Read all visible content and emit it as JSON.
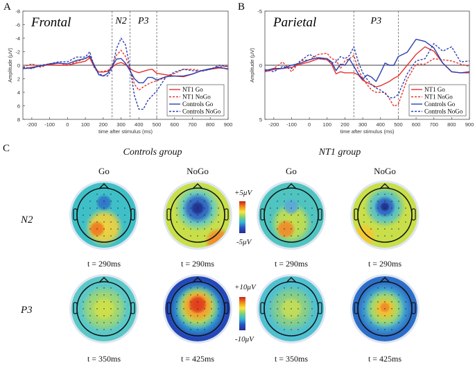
{
  "panels": [
    {
      "letter": "A",
      "region": "Frontal",
      "windows": [
        {
          "label": "N2",
          "from": 250,
          "to": 350
        },
        {
          "label": "P3",
          "from": 350,
          "to": 500
        }
      ],
      "markers_ms": [
        250,
        350,
        500
      ]
    },
    {
      "letter": "B",
      "region": "Parietal",
      "windows": [
        {
          "label": "P3",
          "from": 250,
          "to": 500
        }
      ],
      "markers_ms": [
        250,
        500
      ]
    }
  ],
  "chart_data": [
    {
      "type": "line",
      "title": "Frontal",
      "xlabel": "time after stimulus (ms)",
      "ylabel": "Amplitude (μV)",
      "xlim": [
        -250,
        900
      ],
      "ylim": [
        -8,
        8
      ],
      "y_reversed": true,
      "xticks": [
        -200,
        -100,
        0,
        100,
        200,
        300,
        400,
        500,
        600,
        700,
        800,
        900
      ],
      "yticks": [
        -8,
        -6,
        -4,
        -2,
        0,
        2,
        4,
        6,
        8
      ],
      "legend": "bottom-right",
      "x": [
        -250,
        -200,
        -150,
        -100,
        -50,
        0,
        50,
        100,
        125,
        150,
        175,
        200,
        225,
        250,
        275,
        300,
        325,
        350,
        375,
        400,
        425,
        450,
        475,
        500,
        550,
        600,
        650,
        700,
        750,
        800,
        850,
        900
      ],
      "series": [
        {
          "name": "NT1 Go",
          "color": "#e8302a",
          "dash": false,
          "values": [
            0.5,
            0.3,
            0.1,
            -0.1,
            0,
            0,
            -0.3,
            -0.6,
            -1.1,
            0.3,
            1,
            1,
            0.9,
            0.3,
            -0.2,
            -0.4,
            -0.1,
            0.5,
            0.9,
            1.1,
            0.9,
            0.7,
            0.6,
            1.2,
            1.4,
            1.6,
            1.7,
            1.3,
            0.8,
            0.6,
            0.4,
            0.5
          ]
        },
        {
          "name": "NT1 NoGo",
          "color": "#e8302a",
          "dash": true,
          "values": [
            0.3,
            -0.2,
            0.3,
            -0.2,
            -0.4,
            0,
            -0.5,
            -1,
            -1.2,
            0.2,
            1,
            0.9,
            0.8,
            0.1,
            -1.5,
            -2.2,
            -1.3,
            0.5,
            2.8,
            3.7,
            3.2,
            2.8,
            2.5,
            2.3,
            1.8,
            1.2,
            0.6,
            0.6,
            0.8,
            0.6,
            0.2,
            0.2
          ]
        },
        {
          "name": "Controls Go",
          "color": "#2b3fb0",
          "dash": false,
          "values": [
            0.5,
            0.4,
            0.1,
            -0.2,
            -0.3,
            -0.2,
            -0.7,
            -1,
            -1.4,
            0,
            1.4,
            1.6,
            1.2,
            0.2,
            -0.9,
            -1,
            -0.3,
            0.8,
            2,
            2.6,
            2.6,
            1.8,
            1.8,
            2.2,
            1.7,
            1.6,
            1.6,
            1.3,
            0.8,
            0.5,
            0.3,
            0.6
          ]
        },
        {
          "name": "Controls NoGo",
          "color": "#2b3fb0",
          "dash": true,
          "values": [
            0.3,
            0.5,
            0,
            -0.2,
            -0.5,
            -0.5,
            -1.2,
            -1.2,
            -2,
            0.3,
            1.3,
            1.5,
            1.6,
            0.5,
            -2.5,
            -4,
            -3,
            0.3,
            4.5,
            6.5,
            6.5,
            5.2,
            4.5,
            3.8,
            1.8,
            1,
            0.6,
            0.8,
            0.9,
            0.6,
            0,
            0.2
          ]
        }
      ]
    },
    {
      "type": "line",
      "title": "Parietal",
      "xlabel": "time after stimulus (ms)",
      "ylabel": "Amplitude (μV)",
      "xlim": [
        -250,
        900
      ],
      "ylim": [
        -5,
        5
      ],
      "y_reversed": true,
      "xticks": [
        -200,
        -100,
        0,
        100,
        200,
        300,
        400,
        500,
        600,
        700,
        800,
        900
      ],
      "yticks": [
        -5,
        0,
        5
      ],
      "legend": "bottom-right",
      "x": [
        -250,
        -200,
        -150,
        -100,
        -50,
        0,
        50,
        100,
        125,
        150,
        175,
        200,
        225,
        250,
        275,
        300,
        325,
        350,
        375,
        400,
        425,
        450,
        475,
        500,
        550,
        600,
        650,
        700,
        750,
        800,
        850,
        900
      ],
      "series": [
        {
          "name": "NT1 Go",
          "color": "#e8302a",
          "dash": false,
          "values": [
            0.6,
            0.4,
            0.3,
            0.2,
            -0.1,
            -0.3,
            -0.6,
            -0.5,
            -0.1,
            0.8,
            0.6,
            0.7,
            0.7,
            0.7,
            0.9,
            1.4,
            1.6,
            1.8,
            2,
            1.9,
            1.7,
            1.5,
            1.2,
            1,
            0,
            -1,
            -1.7,
            -1.3,
            -0.2,
            0.6,
            0.7,
            0.7
          ]
        },
        {
          "name": "NT1 NoGo",
          "color": "#e8302a",
          "dash": true,
          "values": [
            0.5,
            0.3,
            -0.3,
            0.6,
            -0.4,
            -0.5,
            -1,
            -1.1,
            -0.6,
            -0.5,
            0.3,
            -0.4,
            -0.6,
            -0.9,
            0.4,
            1.2,
            1.8,
            2.3,
            2.5,
            2.5,
            2.5,
            3.1,
            3.8,
            3.6,
            1.3,
            -0.1,
            -0.1,
            -0.6,
            -0.5,
            -0.4,
            -0.1,
            0.1
          ]
        },
        {
          "name": "Controls Go",
          "color": "#2b3fb0",
          "dash": false,
          "values": [
            0.5,
            0.3,
            0.3,
            0,
            -0.2,
            -0.5,
            -0.7,
            -0.6,
            -0.3,
            0.5,
            -0.1,
            0,
            -0.6,
            0.1,
            0.8,
            1.3,
            0.9,
            1.1,
            1.5,
            0.7,
            -0.2,
            0,
            0,
            -0.8,
            -1.2,
            -2.4,
            -2.2,
            -1.6,
            -0.2,
            0.6,
            0.7,
            0.6
          ]
        },
        {
          "name": "Controls NoGo",
          "color": "#2b3fb0",
          "dash": true,
          "values": [
            0.4,
            0.6,
            0.1,
            0.3,
            -0.4,
            -1,
            -0.6,
            -0.6,
            -0.2,
            -0.3,
            -0.8,
            -0.6,
            -0.9,
            -1.7,
            -0.3,
            0.7,
            1.3,
            1.8,
            2.1,
            2.3,
            2.6,
            3,
            3,
            2.7,
            0.8,
            -0.4,
            -0.6,
            -2,
            -1.3,
            -1.7,
            -0.3,
            -0.4
          ]
        }
      ]
    }
  ],
  "topo": {
    "letter": "C",
    "groups": [
      "Controls group",
      "NT1 group"
    ],
    "conditions": [
      "Go",
      "NoGo",
      "Go",
      "NoGo"
    ],
    "rows": [
      {
        "label": "N2",
        "times": [
          "t = 290ms",
          "t = 290ms",
          "t = 290ms",
          "t = 290ms"
        ],
        "scale_max": "+5μV",
        "scale_min": "-5μV"
      },
      {
        "label": "P3",
        "times": [
          "t = 350ms",
          "t = 425ms",
          "t = 350ms",
          "t = 425ms"
        ],
        "scale_max": "+10μV",
        "scale_min": "-10μV"
      }
    ]
  }
}
